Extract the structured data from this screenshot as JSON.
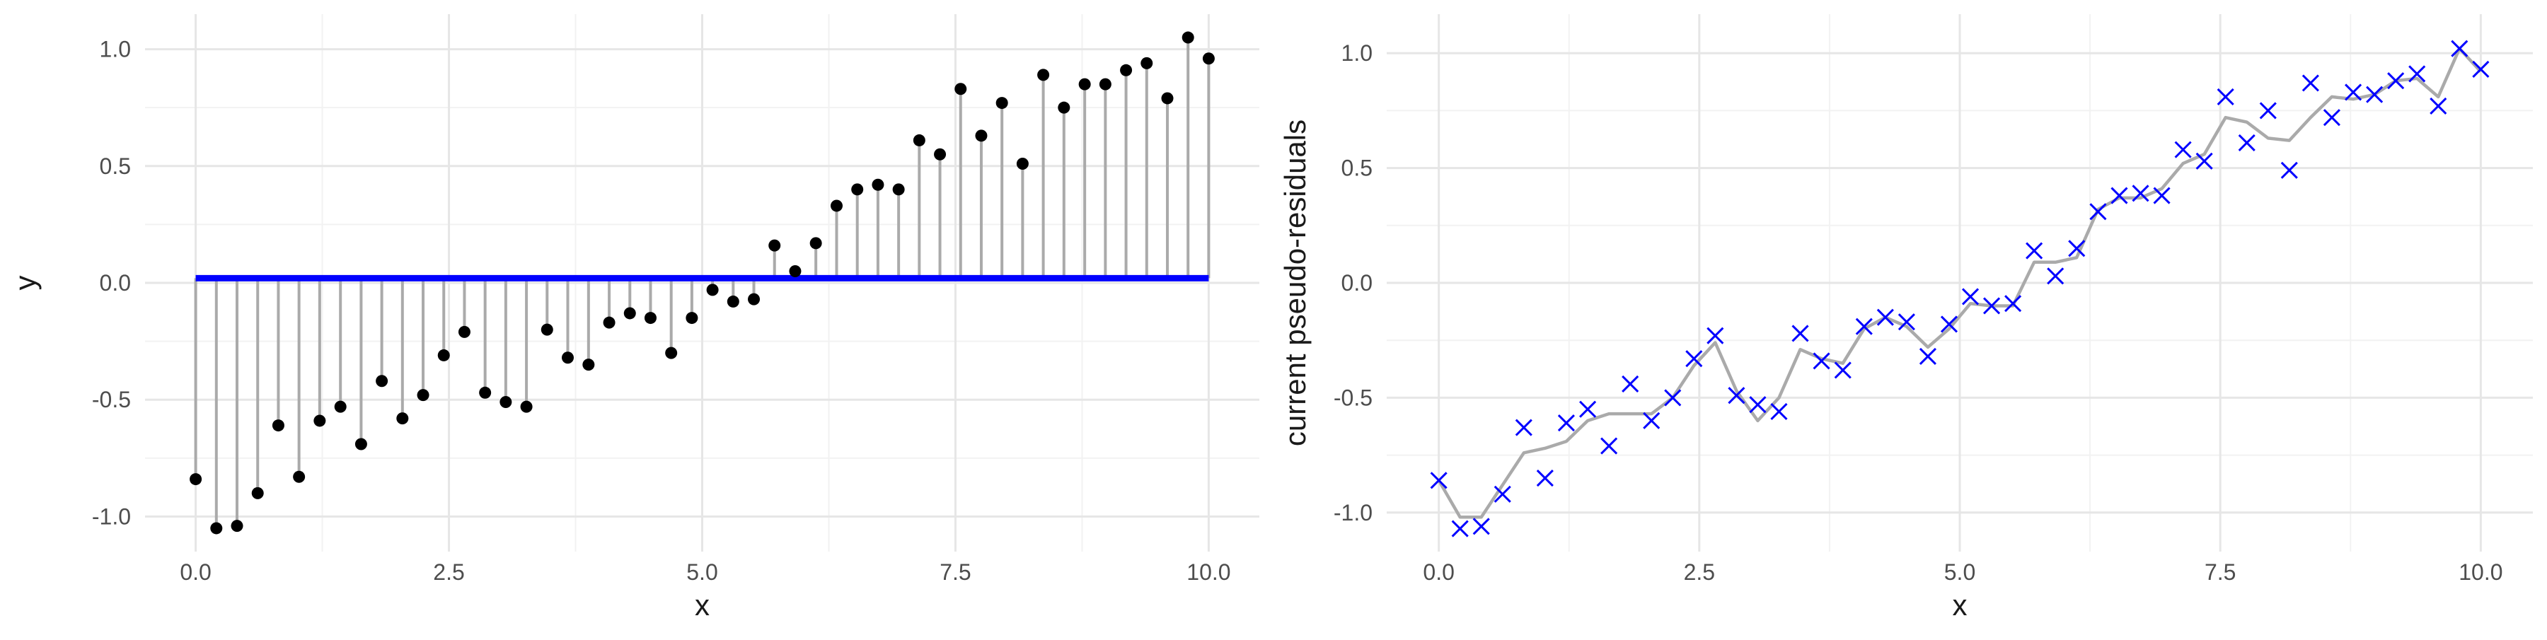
{
  "chart_data": [
    {
      "type": "scatter",
      "style": "lollipop residual plot",
      "xlabel": "x",
      "ylabel": "y",
      "xlim": [
        -0.5,
        10.5
      ],
      "ylim": [
        -1.15,
        1.15
      ],
      "x_ticks": [
        0,
        2.5,
        5,
        7.5,
        10
      ],
      "x_tick_labels": [
        "0.0",
        "2.5",
        "5.0",
        "7.5",
        "10.0"
      ],
      "y_ticks": [
        -1,
        -0.5,
        0,
        0.5,
        1
      ],
      "y_tick_labels": [
        "-1.0",
        "-0.5",
        "0.0",
        "0.5",
        "1.0"
      ],
      "grid": true,
      "prediction_line": {
        "value": 0.02,
        "color": "#0000ff"
      },
      "stem_color": "#aaaaaa",
      "point_color": "#000000",
      "x": [
        0.0,
        0.204,
        0.408,
        0.612,
        0.816,
        1.02,
        1.224,
        1.429,
        1.633,
        1.837,
        2.041,
        2.245,
        2.449,
        2.653,
        2.857,
        3.061,
        3.265,
        3.469,
        3.673,
        3.878,
        4.082,
        4.286,
        4.49,
        4.694,
        4.898,
        5.102,
        5.306,
        5.51,
        5.714,
        5.918,
        6.122,
        6.327,
        6.531,
        6.735,
        6.939,
        7.143,
        7.347,
        7.551,
        7.755,
        7.959,
        8.163,
        8.367,
        8.571,
        8.776,
        8.98,
        9.184,
        9.388,
        9.592,
        9.796,
        10.0
      ],
      "y": [
        -0.84,
        -1.05,
        -1.04,
        -0.9,
        -0.61,
        -0.83,
        -0.59,
        -0.53,
        -0.69,
        -0.42,
        -0.58,
        -0.48,
        -0.31,
        -0.21,
        -0.47,
        -0.51,
        -0.53,
        -0.2,
        -0.32,
        -0.35,
        -0.17,
        -0.13,
        -0.15,
        -0.3,
        -0.15,
        -0.03,
        -0.08,
        -0.07,
        0.16,
        0.05,
        0.17,
        0.33,
        0.4,
        0.42,
        0.4,
        0.61,
        0.55,
        0.83,
        0.63,
        0.77,
        0.51,
        0.89,
        0.75,
        0.85,
        0.85,
        0.91,
        0.94,
        0.79,
        1.05,
        0.96
      ]
    },
    {
      "type": "scatter",
      "style": "pseudo-residuals with fitted line",
      "xlabel": "x",
      "ylabel": "current pseudo-residuals",
      "xlim": [
        -0.5,
        10.5
      ],
      "ylim": [
        -1.17,
        1.17
      ],
      "x_ticks": [
        0,
        2.5,
        5,
        7.5,
        10
      ],
      "x_tick_labels": [
        "0.0",
        "2.5",
        "5.0",
        "7.5",
        "10.0"
      ],
      "y_ticks": [
        -1,
        -0.5,
        0,
        0.5,
        1
      ],
      "y_tick_labels": [
        "-1.0",
        "-0.5",
        "0.0",
        "0.5",
        "1.0"
      ],
      "grid": true,
      "marker": "x",
      "marker_color": "#0000ff",
      "fit_color": "#aaaaaa",
      "x": [
        0.0,
        0.204,
        0.408,
        0.612,
        0.816,
        1.02,
        1.224,
        1.429,
        1.633,
        1.837,
        2.041,
        2.245,
        2.449,
        2.653,
        2.857,
        3.061,
        3.265,
        3.469,
        3.673,
        3.878,
        4.082,
        4.286,
        4.49,
        4.694,
        4.898,
        5.102,
        5.306,
        5.51,
        5.714,
        5.918,
        6.122,
        6.327,
        6.531,
        6.735,
        6.939,
        7.143,
        7.347,
        7.551,
        7.755,
        7.959,
        8.163,
        8.367,
        8.571,
        8.776,
        8.98,
        9.184,
        9.388,
        9.592,
        9.796,
        10.0
      ],
      "y": [
        -0.86,
        -1.07,
        -1.06,
        -0.92,
        -0.63,
        -0.85,
        -0.61,
        -0.55,
        -0.71,
        -0.44,
        -0.6,
        -0.5,
        -0.33,
        -0.23,
        -0.49,
        -0.53,
        -0.56,
        -0.22,
        -0.34,
        -0.38,
        -0.19,
        -0.15,
        -0.17,
        -0.32,
        -0.18,
        -0.06,
        -0.1,
        -0.09,
        0.14,
        0.03,
        0.15,
        0.31,
        0.38,
        0.39,
        0.38,
        0.58,
        0.53,
        0.81,
        0.61,
        0.75,
        0.49,
        0.87,
        0.72,
        0.83,
        0.82,
        0.88,
        0.91,
        0.77,
        1.02,
        0.93
      ],
      "fit_y": [
        -0.86,
        -1.02,
        -1.02,
        -0.88,
        -0.74,
        -0.72,
        -0.69,
        -0.6,
        -0.57,
        -0.57,
        -0.57,
        -0.5,
        -0.36,
        -0.26,
        -0.47,
        -0.6,
        -0.5,
        -0.29,
        -0.33,
        -0.35,
        -0.2,
        -0.15,
        -0.19,
        -0.28,
        -0.2,
        -0.09,
        -0.1,
        -0.1,
        0.09,
        0.09,
        0.11,
        0.32,
        0.37,
        0.37,
        0.41,
        0.52,
        0.56,
        0.72,
        0.7,
        0.63,
        0.62,
        0.72,
        0.81,
        0.8,
        0.82,
        0.88,
        0.89,
        0.81,
        1.02,
        0.92
      ]
    }
  ]
}
